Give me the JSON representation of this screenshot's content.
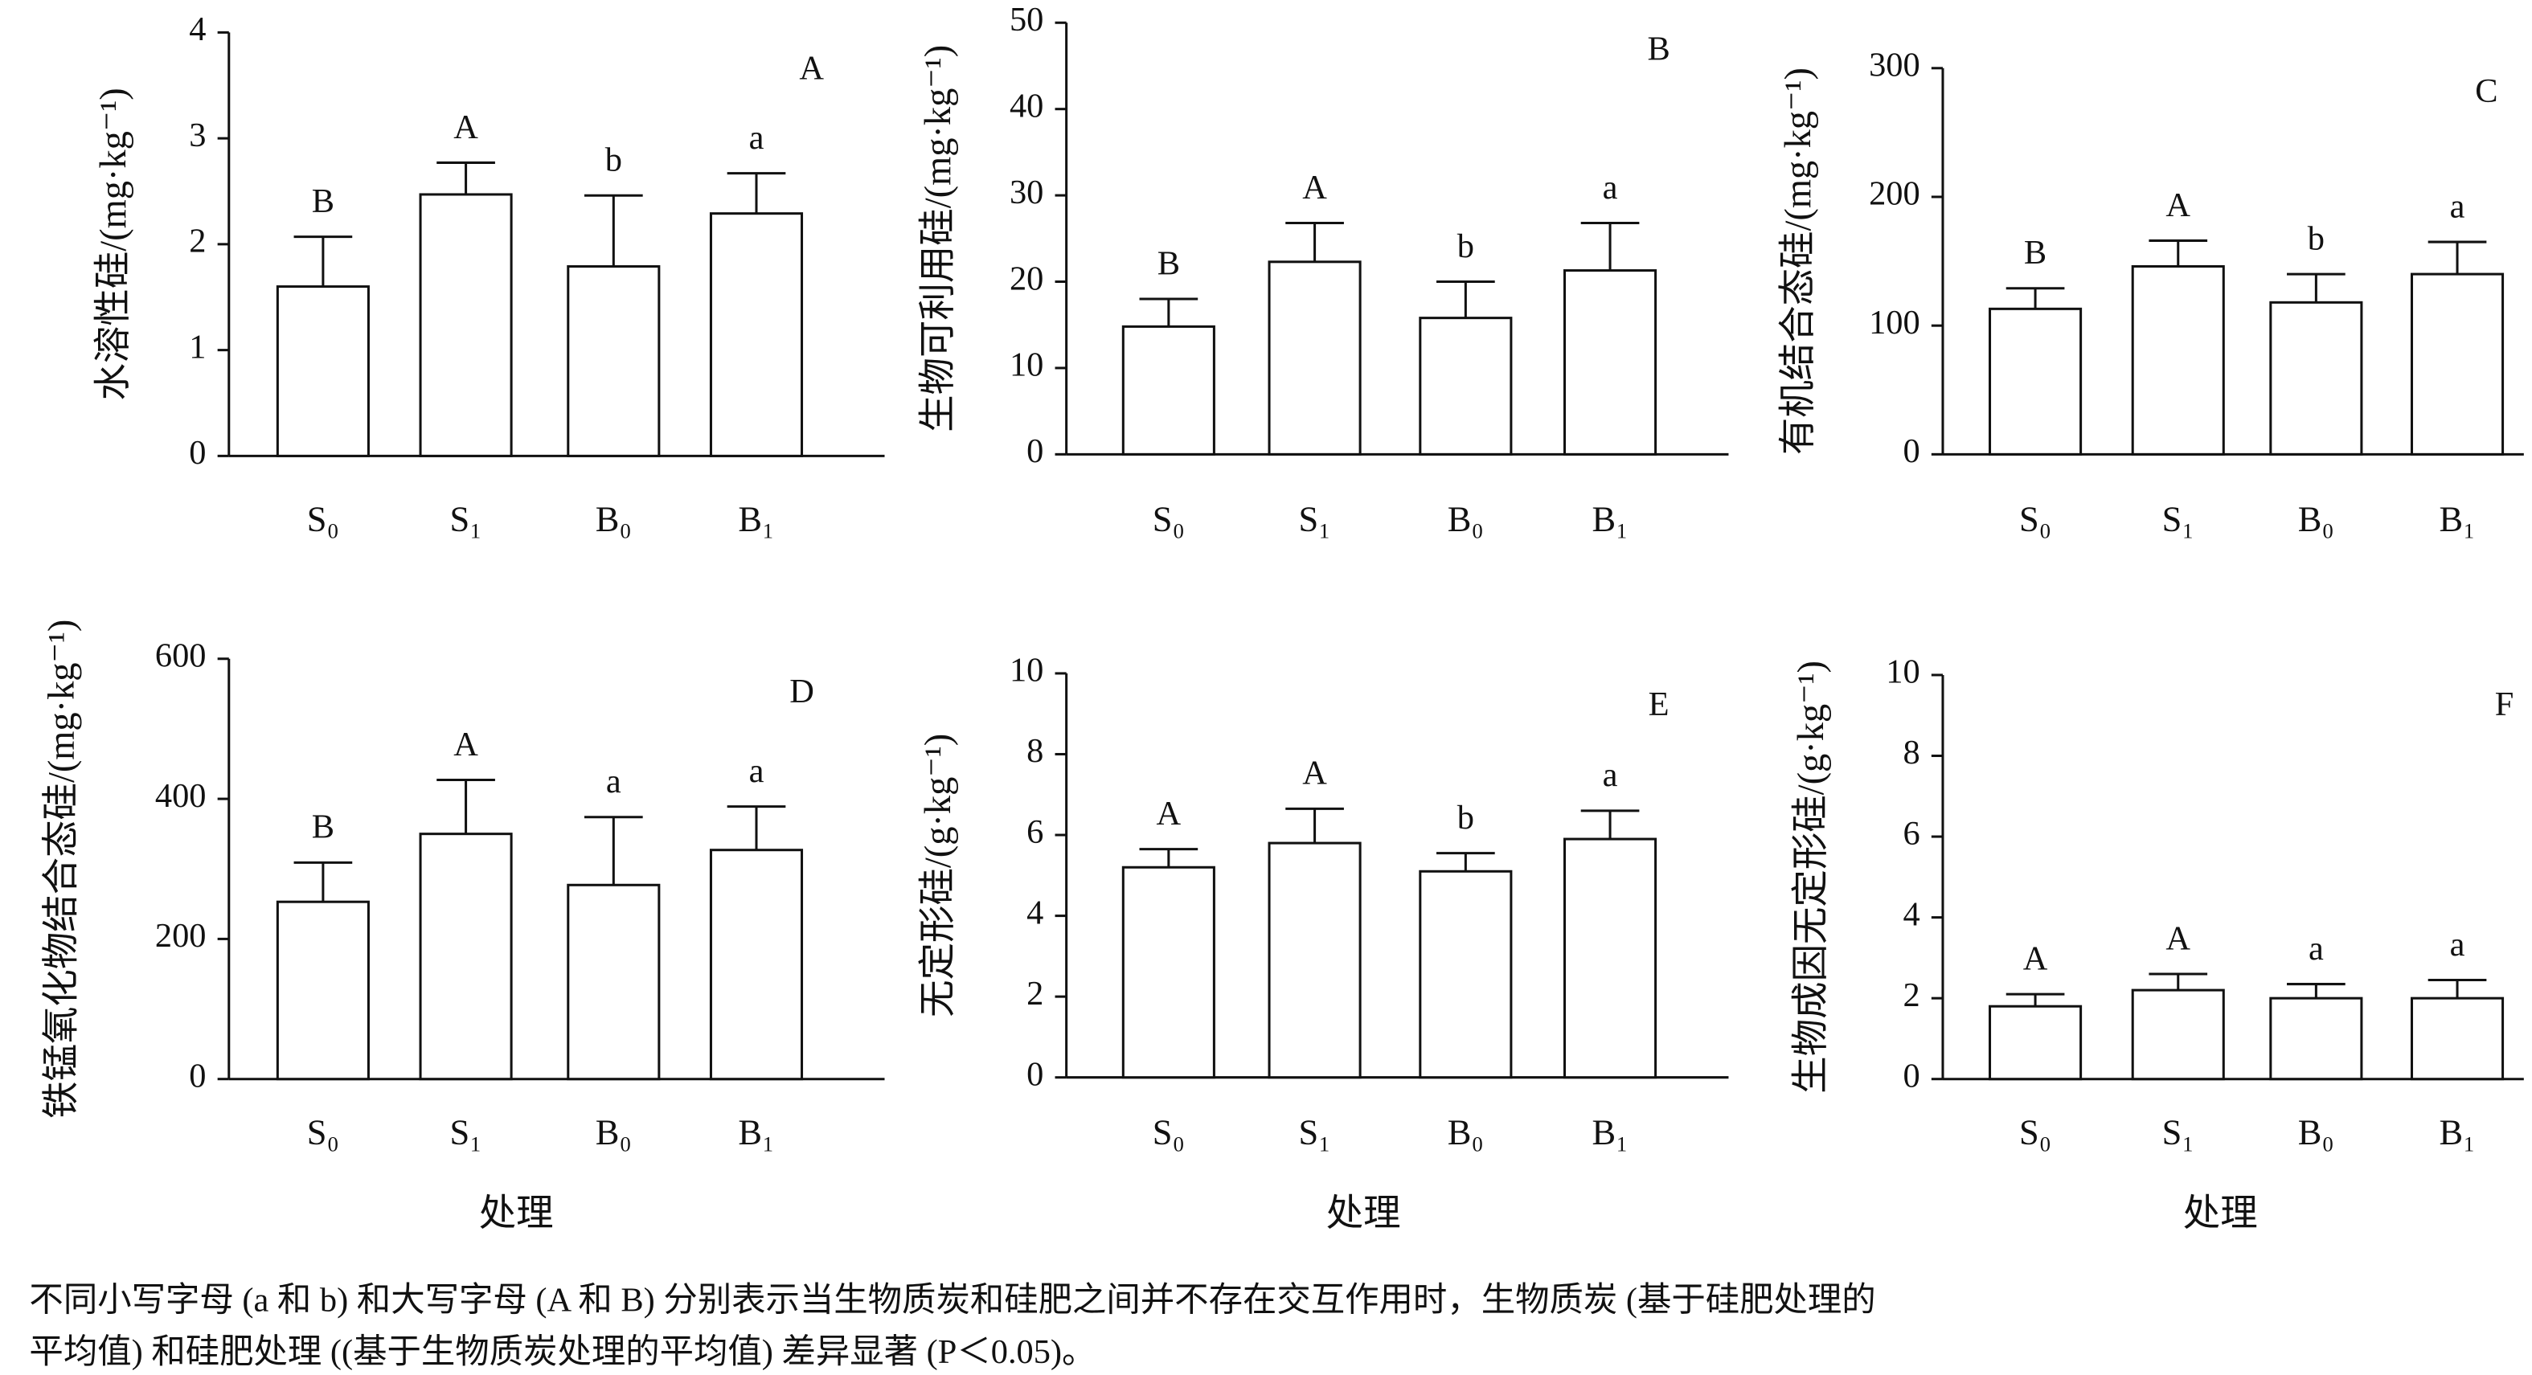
{
  "chart_data": [
    {
      "type": "bar",
      "panel": "A",
      "ylabel": "水溶性硅/(mg·kg⁻¹)",
      "categories": [
        "S₀",
        "S₁",
        "B₀",
        "B₁"
      ],
      "values": [
        1.6,
        2.47,
        1.79,
        2.29
      ],
      "errors": [
        0.47,
        0.3,
        0.67,
        0.38
      ],
      "letters": [
        "B",
        "A",
        "b",
        "a"
      ],
      "ylim": [
        0,
        4
      ],
      "yticks": [
        0,
        1,
        2,
        3,
        4
      ],
      "color": "#ffffff"
    },
    {
      "type": "bar",
      "panel": "B",
      "ylabel": "生物可利用硅/(mg·kg⁻¹)",
      "categories": [
        "S₀",
        "S₁",
        "B₀",
        "B₁"
      ],
      "values": [
        14.8,
        22.3,
        15.8,
        21.3
      ],
      "errors": [
        3.2,
        4.5,
        4.2,
        5.5
      ],
      "letters": [
        "B",
        "A",
        "b",
        "a"
      ],
      "ylim": [
        0,
        50
      ],
      "yticks": [
        0,
        10,
        20,
        30,
        40,
        50
      ],
      "color": "#ffffff"
    },
    {
      "type": "bar",
      "panel": "C",
      "ylabel": "有机结合态硅/(mg·kg⁻¹)",
      "categories": [
        "S₀",
        "S₁",
        "B₀",
        "B₁"
      ],
      "values": [
        113,
        146,
        118,
        140
      ],
      "errors": [
        16,
        20,
        22,
        25
      ],
      "letters": [
        "B",
        "A",
        "b",
        "a"
      ],
      "ylim": [
        0,
        300
      ],
      "yticks": [
        0,
        100,
        200,
        300
      ],
      "color": "#ffffff"
    },
    {
      "type": "bar",
      "panel": "D",
      "ylabel": "铁锰氧化物结合态硅/(mg·kg⁻¹)",
      "xlabel": "处理",
      "categories": [
        "S₀",
        "S₁",
        "B₀",
        "B₁"
      ],
      "values": [
        253,
        350,
        277,
        327
      ],
      "errors": [
        56,
        77,
        97,
        62
      ],
      "letters": [
        "B",
        "A",
        "a",
        "a"
      ],
      "ylim": [
        0,
        600
      ],
      "yticks": [
        0,
        200,
        400,
        600
      ],
      "color": "#ffffff"
    },
    {
      "type": "bar",
      "panel": "E",
      "ylabel": "无定形硅/(g·kg⁻¹)",
      "xlabel": "处理",
      "categories": [
        "S₀",
        "S₁",
        "B₀",
        "B₁"
      ],
      "values": [
        5.2,
        5.8,
        5.1,
        5.9
      ],
      "errors": [
        0.45,
        0.85,
        0.45,
        0.7
      ],
      "letters": [
        "A",
        "A",
        "b",
        "a"
      ],
      "ylim": [
        0,
        10
      ],
      "yticks": [
        0,
        2,
        4,
        6,
        8,
        10
      ],
      "color": "#ffffff"
    },
    {
      "type": "bar",
      "panel": "F",
      "ylabel": "生物成因无定形硅/(g·kg⁻¹)",
      "xlabel": "处理",
      "categories": [
        "S₀",
        "S₁",
        "B₀",
        "B₁"
      ],
      "values": [
        1.8,
        2.2,
        2.0,
        2.0
      ],
      "errors": [
        0.3,
        0.4,
        0.35,
        0.45
      ],
      "letters": [
        "A",
        "A",
        "a",
        "a"
      ],
      "ylim": [
        0,
        10
      ],
      "yticks": [
        0,
        2,
        4,
        6,
        8,
        10
      ],
      "color": "#ffffff"
    }
  ],
  "caption": [
    "不同小写字母 (a 和 b) 和大写字母 (A 和 B) 分别表示当生物质炭和硅肥之间并不存在交互作用时，生物质炭 (基于硅肥处理的",
    "平均值) 和硅肥处理 ((基于生物质炭处理的平均值) 差异显著 (P＜0.05)。"
  ]
}
